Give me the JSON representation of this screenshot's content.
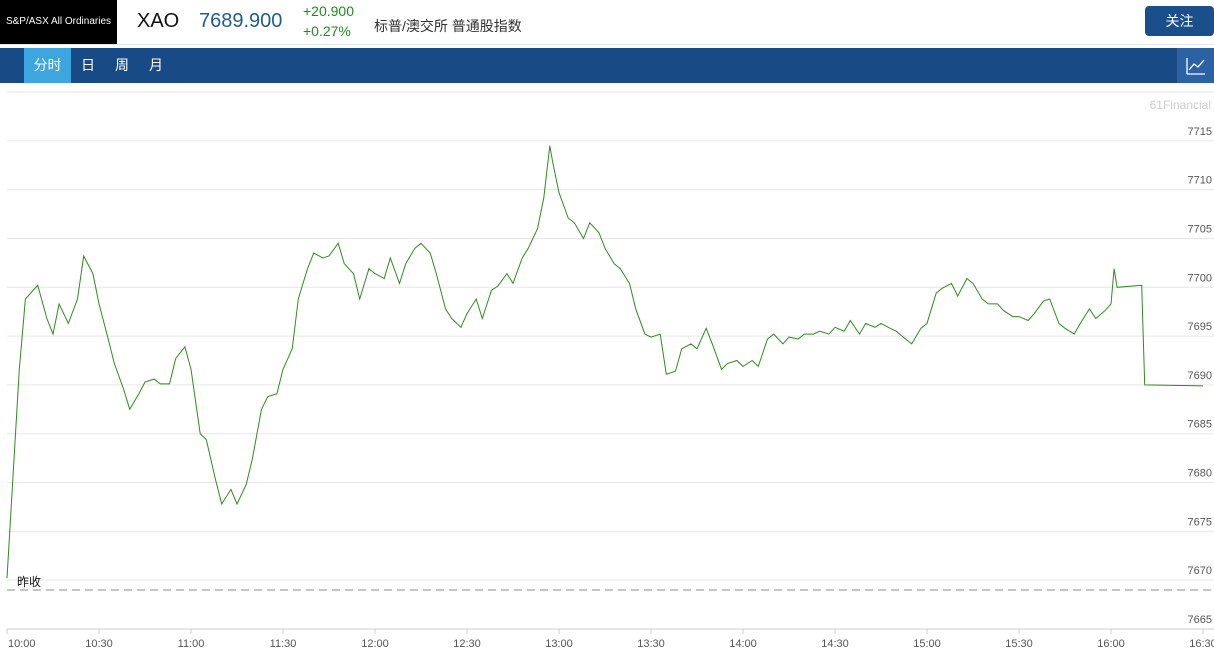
{
  "header": {
    "logo": "S&P/ASX All Ordinaries",
    "symbol": "XAO",
    "price": "7689.900",
    "change": "+20.900",
    "change_pct": "+0.27%",
    "name": "标普/澳交所 普通股指数",
    "follow": "关注"
  },
  "tabs": [
    "分时",
    "日",
    "周",
    "月"
  ],
  "watermark": "61Financial",
  "chart_data": {
    "type": "line",
    "color": "#2e8b1f",
    "grid": true,
    "prev_close": 7669,
    "prev_close_label": "昨收",
    "x": [
      "10:00",
      "10:02",
      "10:04",
      "10:06",
      "10:10",
      "10:13",
      "10:15",
      "10:17",
      "10:20",
      "10:23",
      "10:25",
      "10:28",
      "10:30",
      "10:33",
      "10:35",
      "10:38",
      "10:40",
      "10:43",
      "10:45",
      "10:48",
      "10:50",
      "10:53",
      "10:55",
      "10:58",
      "11:00",
      "11:03",
      "11:05",
      "11:08",
      "11:10",
      "11:13",
      "11:15",
      "11:18",
      "11:20",
      "11:23",
      "11:25",
      "11:28",
      "11:30",
      "11:33",
      "11:35",
      "11:38",
      "11:40",
      "11:43",
      "11:45",
      "11:48",
      "11:50",
      "11:53",
      "11:55",
      "11:58",
      "12:00",
      "12:03",
      "12:05",
      "12:08",
      "12:10",
      "12:13",
      "12:15",
      "12:18",
      "12:20",
      "12:23",
      "12:25",
      "12:28",
      "12:30",
      "12:33",
      "12:35",
      "12:38",
      "12:40",
      "12:43",
      "12:45",
      "12:48",
      "12:50",
      "12:53",
      "12:55",
      "12:57",
      "12:58",
      "13:00",
      "13:03",
      "13:05",
      "13:08",
      "13:10",
      "13:13",
      "13:15",
      "13:18",
      "13:20",
      "13:23",
      "13:25",
      "13:28",
      "13:30",
      "13:33",
      "13:35",
      "13:38",
      "13:40",
      "13:43",
      "13:45",
      "13:48",
      "13:50",
      "13:53",
      "13:55",
      "13:58",
      "14:00",
      "14:03",
      "14:05",
      "14:08",
      "14:10",
      "14:13",
      "14:15",
      "14:18",
      "14:20",
      "14:23",
      "14:25",
      "14:28",
      "14:30",
      "14:33",
      "14:35",
      "14:38",
      "14:40",
      "14:43",
      "14:45",
      "14:48",
      "14:50",
      "14:53",
      "14:55",
      "14:58",
      "15:00",
      "15:03",
      "15:05",
      "15:08",
      "15:10",
      "15:13",
      "15:15",
      "15:18",
      "15:20",
      "15:23",
      "15:25",
      "15:28",
      "15:30",
      "15:33",
      "15:35",
      "15:38",
      "15:40",
      "15:43",
      "15:45",
      "15:48",
      "15:50",
      "15:53",
      "15:55",
      "15:58",
      "16:00",
      "16:01",
      "16:02",
      "16:10",
      "16:11",
      "16:30"
    ],
    "values": [
      7670.2,
      7680.8,
      7691.6,
      7698.8,
      7700.2,
      7696.8,
      7695.2,
      7698.3,
      7696.3,
      7698.8,
      7703.2,
      7701.4,
      7698.3,
      7694.7,
      7692.2,
      7689.6,
      7687.5,
      7689.1,
      7690.3,
      7690.6,
      7690.1,
      7690.1,
      7692.7,
      7693.9,
      7691.6,
      7685.0,
      7684.4,
      7680.3,
      7677.8,
      7679.3,
      7677.8,
      7679.8,
      7682.4,
      7687.5,
      7688.8,
      7689.1,
      7691.6,
      7693.7,
      7698.8,
      7701.9,
      7703.5,
      7703.0,
      7703.2,
      7704.5,
      7702.4,
      7701.4,
      7698.8,
      7701.9,
      7701.4,
      7700.9,
      7703.0,
      7700.4,
      7702.4,
      7704.0,
      7704.5,
      7703.5,
      7701.4,
      7697.8,
      7696.8,
      7695.9,
      7697.3,
      7698.8,
      7696.8,
      7699.7,
      7700.1,
      7701.4,
      7700.4,
      7703.0,
      7704.0,
      7706.0,
      7709.1,
      7714.5,
      7712.7,
      7709.7,
      7707.1,
      7706.6,
      7705.0,
      7706.6,
      7705.6,
      7704.0,
      7702.4,
      7701.9,
      7700.4,
      7697.8,
      7695.2,
      7694.9,
      7695.2,
      7691.1,
      7691.4,
      7693.7,
      7694.2,
      7693.7,
      7695.8,
      7694.2,
      7691.6,
      7692.2,
      7692.5,
      7691.9,
      7692.5,
      7691.9,
      7694.7,
      7695.2,
      7694.2,
      7694.9,
      7694.7,
      7695.2,
      7695.2,
      7695.5,
      7695.2,
      7695.9,
      7695.5,
      7696.6,
      7695.2,
      7696.3,
      7695.9,
      7696.3,
      7695.8,
      7695.5,
      7694.7,
      7694.2,
      7695.8,
      7696.3,
      7699.4,
      7699.9,
      7700.4,
      7699.1,
      7700.9,
      7700.4,
      7698.8,
      7698.3,
      7698.3,
      7697.6,
      7697.0,
      7697.0,
      7696.6,
      7697.3,
      7698.6,
      7698.8,
      7696.3,
      7695.8,
      7695.2,
      7696.3,
      7697.8,
      7696.8,
      7697.6,
      7698.3,
      7701.9,
      7700.0,
      7700.2,
      7690.0,
      7689.9
    ],
    "xlim": [
      "10:00",
      "16:30"
    ],
    "xticks": [
      "10:00",
      "10:30",
      "11:00",
      "11:30",
      "12:00",
      "12:30",
      "13:00",
      "13:30",
      "14:00",
      "14:30",
      "15:00",
      "15:30",
      "16:00",
      "16:30"
    ],
    "ylim": [
      7665,
      7720
    ],
    "yticks": [
      7665,
      7670,
      7675,
      7680,
      7685,
      7690,
      7695,
      7700,
      7705,
      7710,
      7715
    ]
  }
}
